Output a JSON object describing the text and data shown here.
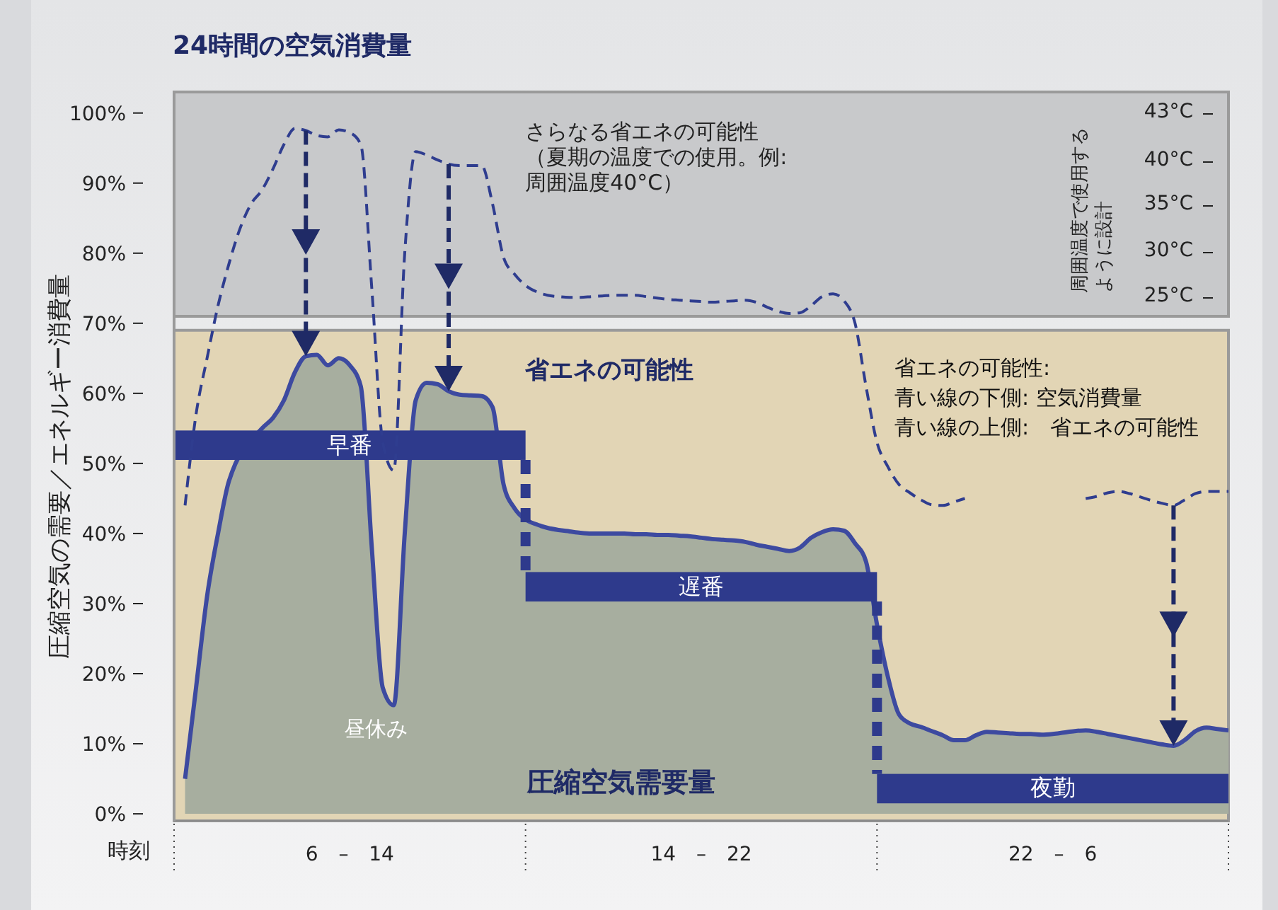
{
  "chart_data": {
    "type": "area",
    "title": "24時間の空気消費量",
    "xlabel": "時刻",
    "ylabel": "圧縮空気の需要／エネルギー消費量",
    "categories": [
      null,
      null,
      null,
      null,
      null,
      null,
      null,
      null,
      null,
      null,
      null,
      null,
      null,
      null,
      null,
      null,
      "6 – 14",
      null,
      null,
      null,
      null,
      null,
      null,
      null,
      null,
      null,
      null,
      null,
      null,
      null,
      null,
      null,
      null,
      null,
      null,
      null,
      null,
      null,
      null,
      null,
      null,
      null,
      null,
      null,
      null,
      null,
      null,
      null,
      "14 – 22",
      null,
      null,
      null,
      null,
      null,
      null,
      null,
      null,
      null,
      null,
      null,
      null,
      null,
      null,
      null,
      null,
      null,
      null,
      null,
      null,
      null,
      null,
      null,
      null,
      null,
      null,
      null,
      null,
      null,
      null,
      null,
      "22 – 6",
      null,
      null,
      null,
      null,
      null,
      null,
      null,
      null,
      null,
      null,
      null,
      null,
      null,
      null,
      null,
      null
    ],
    "ylim": [
      -1,
      103
    ],
    "yticks": [
      {
        "value": 0,
        "label": "0%"
      },
      {
        "value": 10,
        "label": "10%"
      },
      {
        "value": 20,
        "label": "20%"
      },
      {
        "value": 30,
        "label": "30%"
      },
      {
        "value": 40,
        "label": "40%"
      },
      {
        "value": 50,
        "label": "50%"
      },
      {
        "value": 60,
        "label": "60%"
      },
      {
        "value": 70,
        "label": "70%"
      },
      {
        "value": 80,
        "label": "80%"
      },
      {
        "value": 90,
        "label": "90%"
      },
      {
        "value": 100,
        "label": "100%"
      }
    ],
    "series": [
      {
        "name": "圧縮空気需要量",
        "color": "#3d4aa0",
        "values": [
          null,
          5,
          18,
          31,
          40,
          47.5,
          null,
          null,
          55,
          56.5,
          59,
          63,
          65.3,
          65.5,
          64,
          65,
          64,
          61,
          38,
          18,
          15.5,
          40,
          59,
          61.5,
          61.3,
          60.3,
          59.8,
          59.7,
          59.6,
          58,
          47,
          43.6,
          42,
          41.3,
          40.8,
          40.5,
          40.3,
          40.1,
          40,
          40,
          40,
          40,
          39.9,
          39.9,
          39.8,
          39.8,
          39.7,
          39.6,
          39.4,
          39.2,
          39.1,
          39,
          38.8,
          38.4,
          38.1,
          37.8,
          37.5,
          38,
          39.4,
          40.2,
          40.6,
          40.4,
          38.6,
          36,
          27,
          19.5,
          14.2,
          12.9,
          12.4,
          11.8,
          11.2,
          10.5,
          10.5,
          11.2,
          11.7,
          11.6,
          11.5,
          11.4,
          11.4,
          11.3,
          11.4,
          11.6,
          11.8,
          11.9,
          11.7,
          11.4,
          11.1,
          10.8,
          10.5,
          10.2,
          9.9,
          9.7,
          10.5,
          11.8,
          12.3,
          12.1,
          11.9
        ]
      },
      {
        "type": "line",
        "color": "#2f3d8f",
        "line_style": "dashed",
        "marker": "none",
        "values": [
          null,
          44,
          57,
          65,
          72.5,
          78.5,
          83.5,
          87,
          89,
          92,
          95.5,
          97.8,
          97.5,
          96.8,
          96.6,
          97.6,
          97.2,
          95.5,
          75,
          53,
          49,
          80,
          94.5,
          94,
          93.3,
          92.7,
          92.5,
          92.5,
          92.5,
          87,
          79.4,
          77,
          75.4,
          74.5,
          74,
          73.8,
          73.7,
          73.7,
          73.8,
          73.9,
          74,
          74,
          74,
          73.8,
          73.6,
          73.4,
          73.3,
          73.2,
          73.1,
          73,
          73.1,
          73.2,
          73.3,
          73,
          72.3,
          71.7,
          71.4,
          71.5,
          72.5,
          73.8,
          74.2,
          73.2,
          70,
          61,
          53,
          49.5,
          47,
          45.8,
          44.8,
          44.1,
          44,
          44.5,
          45,
          null,
          null,
          null,
          null,
          null,
          null,
          null,
          null,
          null,
          null,
          45,
          45.3,
          45.8,
          46,
          45.7,
          45.2,
          44.7,
          44.3,
          44,
          44.8,
          45.7,
          46,
          46,
          46
        ]
      }
    ],
    "bands": [
      {
        "axis": "y",
        "from": 71,
        "to": 103,
        "label": "さらなる省エネの可能性",
        "color": "#c8c9cb"
      },
      {
        "axis": "y",
        "from": -1,
        "to": 69,
        "label": "省エネの可能性",
        "color": "#e2d5b5"
      }
    ],
    "annotations": [
      "早番",
      "遅番",
      "夜勤",
      "昼休み",
      "（夏期の温度での使用。例:周囲温度40°C）",
      "省エネの可能性:",
      "青い線の下側: 空気消費量",
      "青い線の上側:　省エネの可能性",
      "周囲温度で使用するように設計",
      "43°C",
      "40°C",
      "35°C",
      "30°C",
      "25°C"
    ]
  }
}
